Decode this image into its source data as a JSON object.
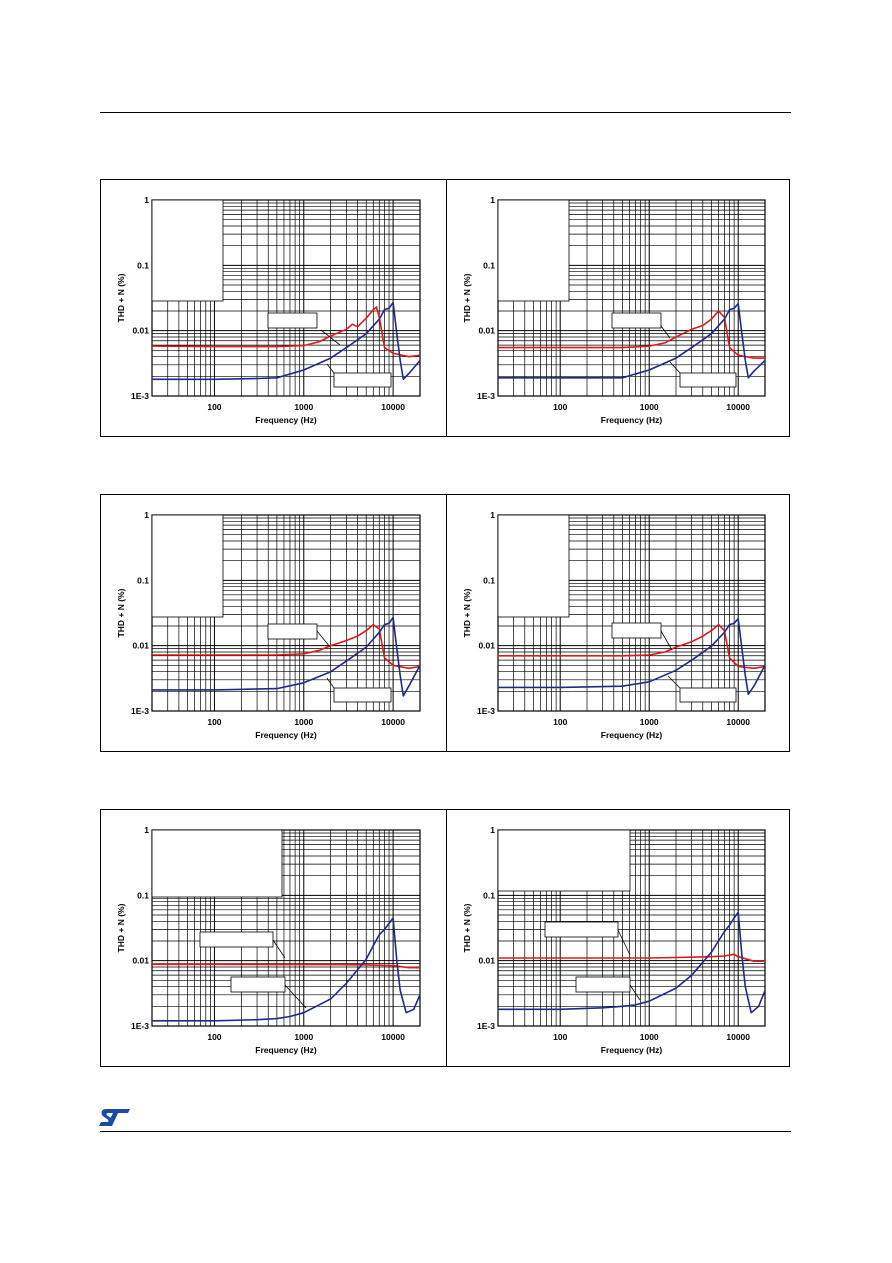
{
  "brand": {
    "logo_icon": "st-logo-icon",
    "color": "#1a4aa6"
  },
  "colors": {
    "red": "#e01818",
    "blue": "#1c2a8c"
  },
  "chart_data": [
    {
      "type": "line",
      "log_x": true,
      "log_y": true,
      "xlim": [
        20,
        20000
      ],
      "ylim": [
        0.001,
        1
      ],
      "xlabel": "Frequency (Hz)",
      "ylabel": "THD + N (%)",
      "x_ticks": [
        "100",
        "1000",
        "10000"
      ],
      "y_ticks": [
        "1E-3",
        "0.01",
        "0.1",
        "1"
      ],
      "series": [
        {
          "color": "red",
          "points": [
            [
              20,
              0.0058
            ],
            [
              100,
              0.0057
            ],
            [
              500,
              0.0057
            ],
            [
              1000,
              0.0059
            ],
            [
              1500,
              0.0068
            ],
            [
              2000,
              0.0083
            ],
            [
              3000,
              0.0105
            ],
            [
              3500,
              0.0125
            ],
            [
              4000,
              0.0115
            ],
            [
              5000,
              0.0155
            ],
            [
              6000,
              0.021
            ],
            [
              6500,
              0.023
            ],
            [
              7000,
              0.016
            ],
            [
              8000,
              0.0055
            ],
            [
              10000,
              0.0045
            ],
            [
              15000,
              0.004
            ],
            [
              20000,
              0.0042
            ]
          ]
        },
        {
          "color": "blue",
          "points": [
            [
              20,
              0.0018
            ],
            [
              100,
              0.0018
            ],
            [
              300,
              0.00185
            ],
            [
              500,
              0.0019
            ],
            [
              1000,
              0.0025
            ],
            [
              2000,
              0.0038
            ],
            [
              3000,
              0.0055
            ],
            [
              5000,
              0.009
            ],
            [
              7000,
              0.015
            ],
            [
              8000,
              0.021
            ],
            [
              9000,
              0.022
            ],
            [
              10000,
              0.027
            ],
            [
              11000,
              0.009
            ],
            [
              12000,
              0.0035
            ],
            [
              13000,
              0.0018
            ],
            [
              15000,
              0.0022
            ],
            [
              20000,
              0.0035
            ]
          ]
        }
      ]
    },
    {
      "type": "line",
      "log_x": true,
      "log_y": true,
      "xlim": [
        20,
        20000
      ],
      "ylim": [
        0.001,
        1
      ],
      "xlabel": "Frequency (Hz)",
      "ylabel": "THD + N (%)",
      "x_ticks": [
        "100",
        "1000",
        "10000"
      ],
      "y_ticks": [
        "1E-3",
        "0.01",
        "0.1",
        "1"
      ],
      "series": [
        {
          "color": "red",
          "points": [
            [
              20,
              0.0055
            ],
            [
              100,
              0.0055
            ],
            [
              500,
              0.0055
            ],
            [
              1000,
              0.0058
            ],
            [
              1500,
              0.0065
            ],
            [
              2000,
              0.008
            ],
            [
              3000,
              0.0105
            ],
            [
              4000,
              0.012
            ],
            [
              5000,
              0.015
            ],
            [
              6000,
              0.02
            ],
            [
              7000,
              0.016
            ],
            [
              8000,
              0.0055
            ],
            [
              10000,
              0.0042
            ],
            [
              15000,
              0.0038
            ],
            [
              20000,
              0.0038
            ]
          ]
        },
        {
          "color": "blue",
          "points": [
            [
              20,
              0.0019
            ],
            [
              100,
              0.0019
            ],
            [
              500,
              0.0019
            ],
            [
              1000,
              0.0025
            ],
            [
              2000,
              0.0038
            ],
            [
              3000,
              0.0055
            ],
            [
              5000,
              0.009
            ],
            [
              7000,
              0.015
            ],
            [
              8000,
              0.021
            ],
            [
              9000,
              0.022
            ],
            [
              10000,
              0.026
            ],
            [
              11000,
              0.009
            ],
            [
              12000,
              0.0035
            ],
            [
              13000,
              0.0019
            ],
            [
              15000,
              0.0024
            ],
            [
              20000,
              0.0035
            ]
          ]
        }
      ]
    },
    {
      "type": "line",
      "log_x": true,
      "log_y": true,
      "xlim": [
        20,
        20000
      ],
      "ylim": [
        0.001,
        1
      ],
      "xlabel": "Frequency (Hz)",
      "ylabel": "THD + N (%)",
      "x_ticks": [
        "100",
        "1000",
        "10000"
      ],
      "y_ticks": [
        "1E-3",
        "0.01",
        "0.1",
        "1"
      ],
      "series": [
        {
          "color": "red",
          "points": [
            [
              20,
              0.0072
            ],
            [
              100,
              0.0072
            ],
            [
              500,
              0.0072
            ],
            [
              1000,
              0.0075
            ],
            [
              1500,
              0.0085
            ],
            [
              2000,
              0.01
            ],
            [
              3000,
              0.012
            ],
            [
              4000,
              0.014
            ],
            [
              5000,
              0.017
            ],
            [
              6000,
              0.021
            ],
            [
              7000,
              0.018
            ],
            [
              8000,
              0.0065
            ],
            [
              10000,
              0.005
            ],
            [
              15000,
              0.0045
            ],
            [
              20000,
              0.0048
            ]
          ]
        },
        {
          "color": "blue",
          "points": [
            [
              20,
              0.0021
            ],
            [
              100,
              0.0021
            ],
            [
              500,
              0.0022
            ],
            [
              1000,
              0.0027
            ],
            [
              2000,
              0.004
            ],
            [
              3000,
              0.0058
            ],
            [
              5000,
              0.0095
            ],
            [
              7000,
              0.016
            ],
            [
              8000,
              0.021
            ],
            [
              9000,
              0.022
            ],
            [
              10000,
              0.027
            ],
            [
              11000,
              0.009
            ],
            [
              12000,
              0.0035
            ],
            [
              13000,
              0.0017
            ],
            [
              15000,
              0.0024
            ],
            [
              20000,
              0.005
            ]
          ]
        }
      ]
    },
    {
      "type": "line",
      "log_x": true,
      "log_y": true,
      "xlim": [
        20,
        20000
      ],
      "ylim": [
        0.001,
        1
      ],
      "xlabel": "Frequency (Hz)",
      "ylabel": "THD + N (%)",
      "x_ticks": [
        "100",
        "1000",
        "10000"
      ],
      "y_ticks": [
        "1E-3",
        "0.01",
        "0.1",
        "1"
      ],
      "series": [
        {
          "color": "red",
          "points": [
            [
              20,
              0.007
            ],
            [
              100,
              0.007
            ],
            [
              500,
              0.007
            ],
            [
              1000,
              0.0072
            ],
            [
              1500,
              0.008
            ],
            [
              2000,
              0.0095
            ],
            [
              3000,
              0.0115
            ],
            [
              4000,
              0.014
            ],
            [
              5000,
              0.017
            ],
            [
              6000,
              0.021
            ],
            [
              7000,
              0.017
            ],
            [
              8000,
              0.0065
            ],
            [
              10000,
              0.0048
            ],
            [
              15000,
              0.0045
            ],
            [
              20000,
              0.0048
            ]
          ]
        },
        {
          "color": "blue",
          "points": [
            [
              20,
              0.0023
            ],
            [
              100,
              0.0023
            ],
            [
              500,
              0.0024
            ],
            [
              1000,
              0.0028
            ],
            [
              2000,
              0.0042
            ],
            [
              3000,
              0.006
            ],
            [
              5000,
              0.0098
            ],
            [
              7000,
              0.016
            ],
            [
              8000,
              0.021
            ],
            [
              9000,
              0.022
            ],
            [
              10000,
              0.026
            ],
            [
              11000,
              0.009
            ],
            [
              12000,
              0.0035
            ],
            [
              13000,
              0.0018
            ],
            [
              15000,
              0.0024
            ],
            [
              20000,
              0.005
            ]
          ]
        }
      ]
    },
    {
      "type": "line",
      "log_x": true,
      "log_y": true,
      "xlim": [
        20,
        20000
      ],
      "ylim": [
        0.001,
        1
      ],
      "xlabel": "Frequency (Hz)",
      "ylabel": "THD + N (%)",
      "x_ticks": [
        "100",
        "1000",
        "10000"
      ],
      "y_ticks": [
        "1E-3",
        "0.01",
        "0.1",
        "1"
      ],
      "series": [
        {
          "color": "red",
          "points": [
            [
              20,
              0.0088
            ],
            [
              100,
              0.0088
            ],
            [
              500,
              0.0087
            ],
            [
              1000,
              0.0087
            ],
            [
              2000,
              0.0087
            ],
            [
              5000,
              0.0086
            ],
            [
              10000,
              0.0084
            ],
            [
              15000,
              0.0078
            ],
            [
              20000,
              0.0078
            ]
          ]
        },
        {
          "color": "blue",
          "points": [
            [
              20,
              0.0012
            ],
            [
              100,
              0.0012
            ],
            [
              300,
              0.00125
            ],
            [
              500,
              0.0013
            ],
            [
              700,
              0.0014
            ],
            [
              1000,
              0.0016
            ],
            [
              2000,
              0.0026
            ],
            [
              3000,
              0.0045
            ],
            [
              5000,
              0.0105
            ],
            [
              6000,
              0.017
            ],
            [
              7000,
              0.025
            ],
            [
              8000,
              0.03
            ],
            [
              9000,
              0.037
            ],
            [
              10000,
              0.045
            ],
            [
              11000,
              0.01
            ],
            [
              12000,
              0.0035
            ],
            [
              14000,
              0.0016
            ],
            [
              17000,
              0.0018
            ],
            [
              20000,
              0.003
            ]
          ]
        }
      ]
    },
    {
      "type": "line",
      "log_x": true,
      "log_y": true,
      "xlim": [
        20,
        20000
      ],
      "ylim": [
        0.001,
        1
      ],
      "xlabel": "Frequency (Hz)",
      "ylabel": "THD + N (%)",
      "x_ticks": [
        "100",
        "1000",
        "10000"
      ],
      "y_ticks": [
        "1E-3",
        "0.01",
        "0.1",
        "1"
      ],
      "series": [
        {
          "color": "red",
          "points": [
            [
              20,
              0.011
            ],
            [
              100,
              0.011
            ],
            [
              500,
              0.011
            ],
            [
              1000,
              0.011
            ],
            [
              2000,
              0.0112
            ],
            [
              5000,
              0.0115
            ],
            [
              7000,
              0.0118
            ],
            [
              9000,
              0.0125
            ],
            [
              10000,
              0.0115
            ],
            [
              15000,
              0.0098
            ],
            [
              20000,
              0.0098
            ]
          ]
        },
        {
          "color": "blue",
          "points": [
            [
              20,
              0.0018
            ],
            [
              100,
              0.0018
            ],
            [
              300,
              0.0019
            ],
            [
              500,
              0.002
            ],
            [
              700,
              0.0021
            ],
            [
              1000,
              0.0024
            ],
            [
              2000,
              0.0038
            ],
            [
              3000,
              0.006
            ],
            [
              5000,
              0.0135
            ],
            [
              6000,
              0.02
            ],
            [
              7000,
              0.028
            ],
            [
              8000,
              0.035
            ],
            [
              9000,
              0.045
            ],
            [
              10000,
              0.055
            ],
            [
              11000,
              0.012
            ],
            [
              12000,
              0.004
            ],
            [
              14000,
              0.0016
            ],
            [
              17000,
              0.002
            ],
            [
              20000,
              0.0035
            ]
          ]
        }
      ]
    }
  ]
}
